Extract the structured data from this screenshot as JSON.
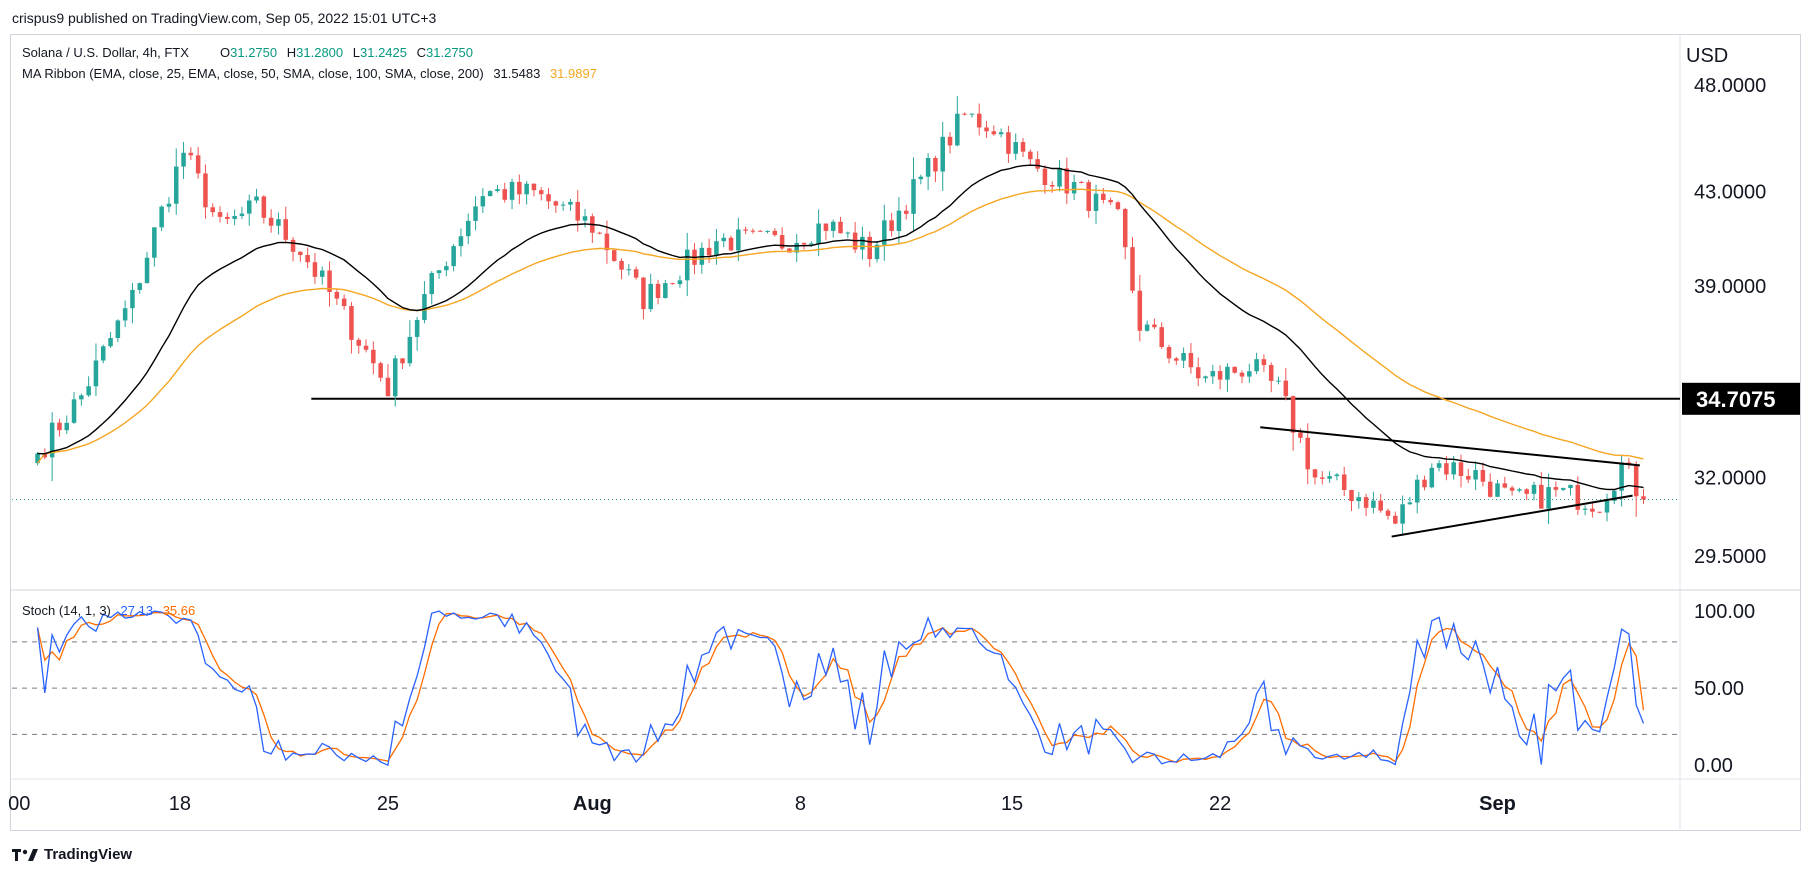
{
  "header": {
    "published_by": "crispus9 published on TradingView.com, Sep 05, 2022 15:01 UTC+3"
  },
  "legend": {
    "symbol": "Solana / U.S. Dollar, 4h, FTX",
    "o_label": "O",
    "o_value": "31.2750",
    "h_label": "H",
    "h_value": "31.2800",
    "l_label": "L",
    "l_value": "31.2425",
    "c_label": "C",
    "c_value": "31.2750",
    "ma_ribbon_label": "MA Ribbon (EMA, close, 25, EMA, close, 50, SMA, close, 100, SMA, close, 200)",
    "ma_value_1": "31.5483",
    "ma_value_2": "31.9897",
    "stoch_label": "Stoch (14, 1, 3)",
    "stoch_k": "27.13",
    "stoch_d": "35.66"
  },
  "colors": {
    "up": "#26a69a",
    "down": "#ef5350",
    "ema25": "#000000",
    "ema50": "#f5a623",
    "stoch_k": "#2962ff",
    "stoch_d": "#ff6d00",
    "label_bg": "#000000"
  },
  "footer": {
    "brand": "TradingView",
    "logo_icon": "tradingview-logo-icon"
  },
  "chart_data": [
    {
      "type": "candlestick",
      "title": "Solana / U.S. Dollar, 4h, FTX",
      "currency_label": "USD",
      "y_ticks": [
        "48.0000",
        "43.0000",
        "39.0000",
        "32.0000",
        "29.5000"
      ],
      "y_tick_values": [
        48.0,
        43.0,
        39.0,
        32.0,
        29.5
      ],
      "y_scale": "log",
      "ylim": [
        28.6,
        50.4
      ],
      "x_ticks": [
        "00",
        "18",
        "25",
        "Aug",
        "8",
        "15",
        "22",
        "Sep"
      ],
      "x_tick_values": [
        -2.5,
        19.5,
        48,
        76,
        104.5,
        133.5,
        162,
        200
      ],
      "xlim": [
        -3.5,
        225
      ],
      "horizontal_level": {
        "value": 34.7075,
        "label": "34.7075",
        "from_x": 37.5,
        "to_x": 240
      },
      "last_price": 31.275,
      "triangle": {
        "upper": [
          [
            167.5,
            33.7
          ],
          [
            219.5,
            32.4
          ]
        ],
        "lower": [
          [
            185.5,
            30.1
          ],
          [
            218.5,
            31.4
          ]
        ]
      },
      "waypoints": [
        [
          0,
          32.8
        ],
        [
          6,
          34.8
        ],
        [
          13,
          38.5
        ],
        [
          20,
          44.8
        ],
        [
          25,
          41.4
        ],
        [
          30,
          42.3
        ],
        [
          36,
          40.5
        ],
        [
          42,
          37.8
        ],
        [
          48,
          35.1
        ],
        [
          53,
          38.5
        ],
        [
          61,
          43.0
        ],
        [
          68,
          42.9
        ],
        [
          76,
          41.5
        ],
        [
          83,
          38.5
        ],
        [
          93,
          40.9
        ],
        [
          102,
          40.8
        ],
        [
          108,
          41.6
        ],
        [
          114,
          40.4
        ],
        [
          121,
          43.5
        ],
        [
          127,
          46.5
        ],
        [
          131,
          46.0
        ],
        [
          136,
          44.2
        ],
        [
          142,
          43.2
        ],
        [
          148,
          41.7
        ],
        [
          151,
          37.5
        ],
        [
          156,
          36.2
        ],
        [
          160,
          35.4
        ],
        [
          166,
          35.9
        ],
        [
          170,
          35.0
        ],
        [
          175,
          32.0
        ],
        [
          182,
          31.3
        ],
        [
          186,
          30.5
        ],
        [
          191,
          32.5
        ],
        [
          197,
          32.1
        ],
        [
          202,
          31.2
        ],
        [
          208,
          31.5
        ],
        [
          214,
          31.2
        ],
        [
          217,
          32.4
        ],
        [
          220,
          31.28
        ]
      ],
      "series": [
        {
          "name": "EMA 25",
          "value": 31.5483
        },
        {
          "name": "EMA 50",
          "value": 31.9897
        }
      ]
    },
    {
      "type": "line",
      "title": "Stoch (14, 1, 3)",
      "y_ticks": [
        "100.00",
        "50.00",
        "0.00"
      ],
      "y_tick_values": [
        100,
        50,
        0
      ],
      "ylim": [
        -7,
        111
      ],
      "bands": [
        80,
        50,
        20
      ],
      "series": [
        {
          "name": "%K",
          "value": 27.13
        },
        {
          "name": "%D",
          "value": 35.66
        }
      ]
    }
  ]
}
